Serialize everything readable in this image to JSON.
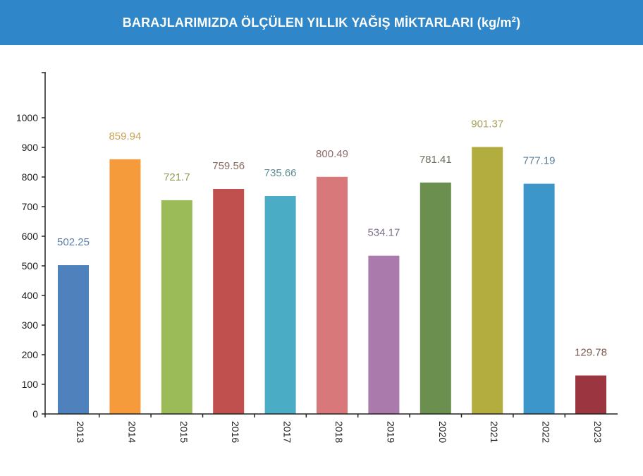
{
  "header": {
    "title_main": "BARAJLARIMIZDA ÖLÇÜLEN YILLIK YAĞIŞ MİKTARLARI (kg/m",
    "title_sup": "2",
    "title_end": ")"
  },
  "chart_data": {
    "type": "bar",
    "title": "BARAJLARIMIZDA ÖLÇÜLEN YILLIK YAĞIŞ MİKTARLARI (kg/m²)",
    "categories": [
      "2013",
      "2014",
      "2015",
      "2016",
      "2017",
      "2018",
      "2019",
      "2020",
      "2021",
      "2022",
      "2023"
    ],
    "values": [
      502.25,
      859.94,
      721.7,
      759.56,
      735.66,
      800.49,
      534.17,
      781.41,
      901.37,
      777.19,
      129.78
    ],
    "value_labels": [
      "502.25",
      "859.94",
      "721.7",
      "759.56",
      "735.66",
      "800.49",
      "534.17",
      "781.41",
      "901.37",
      "777.19",
      "129.78"
    ],
    "colors": [
      "#4f81bd",
      "#f59b3b",
      "#9bbb59",
      "#c0504d",
      "#4bacc6",
      "#d9787a",
      "#a97aab",
      "#6a8f4e",
      "#b3ac3e",
      "#3d96c9",
      "#9b3540"
    ],
    "label_colors": [
      "#5b7fa8",
      "#c9a35a",
      "#8d9a5a",
      "#8a6a62",
      "#5f8d94",
      "#8f6a6a",
      "#7f6f8a",
      "#66705a",
      "#a9a15a",
      "#5c7f9a",
      "#7a5a4f"
    ],
    "yticks": [
      0,
      100,
      200,
      300,
      400,
      500,
      600,
      700,
      800,
      900,
      1000
    ],
    "ylim": [
      0,
      1000
    ],
    "xlabel": "",
    "ylabel": "",
    "grid": false,
    "legend": "none"
  }
}
